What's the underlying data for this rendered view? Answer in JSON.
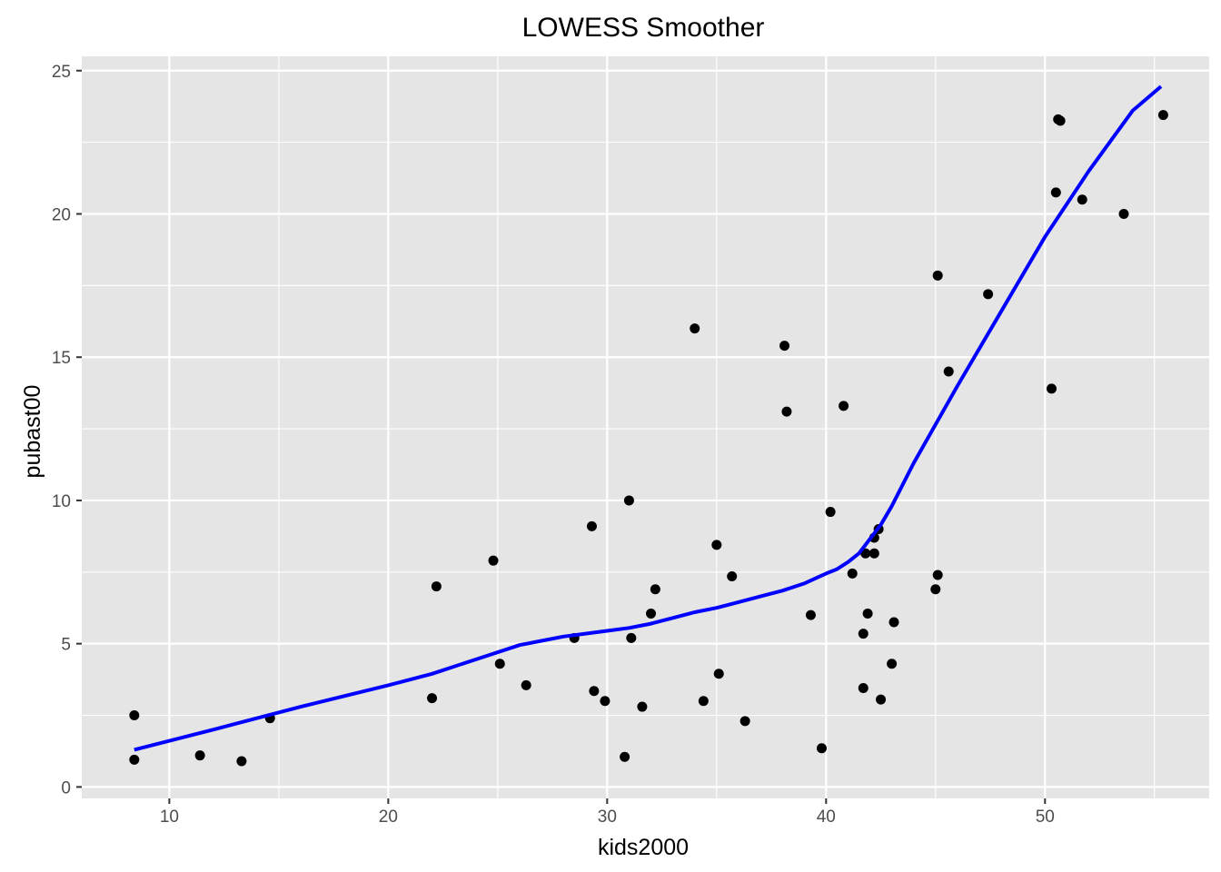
{
  "chart_data": {
    "type": "scatter",
    "title": "LOWESS Smoother",
    "xlabel": "kids2000",
    "ylabel": "pubast00",
    "xlim": [
      6.0,
      57.5
    ],
    "ylim": [
      -0.4,
      25.5
    ],
    "x_ticks": [
      10,
      20,
      30,
      40,
      50
    ],
    "y_ticks": [
      0,
      5,
      10,
      15,
      20,
      25
    ],
    "x_tick_labels": [
      "10",
      "20",
      "30",
      "40",
      "50"
    ],
    "y_tick_labels": [
      "0",
      "5",
      "10",
      "15",
      "20",
      "25"
    ],
    "grid": true,
    "legend": "none",
    "colors": {
      "panel": "#e5e5e5",
      "grid": "#ffffff",
      "points": "#000000",
      "smoother": "#0000ff"
    },
    "points": [
      {
        "x": 8.4,
        "y": 2.5
      },
      {
        "x": 8.4,
        "y": 0.95
      },
      {
        "x": 11.4,
        "y": 1.1
      },
      {
        "x": 13.3,
        "y": 0.9
      },
      {
        "x": 14.6,
        "y": 2.4
      },
      {
        "x": 22.0,
        "y": 3.1
      },
      {
        "x": 22.2,
        "y": 7.0
      },
      {
        "x": 24.8,
        "y": 7.9
      },
      {
        "x": 25.1,
        "y": 4.3
      },
      {
        "x": 26.3,
        "y": 3.55
      },
      {
        "x": 28.5,
        "y": 5.2
      },
      {
        "x": 29.3,
        "y": 9.1
      },
      {
        "x": 29.4,
        "y": 3.35
      },
      {
        "x": 29.9,
        "y": 3.0
      },
      {
        "x": 30.8,
        "y": 1.05
      },
      {
        "x": 31.0,
        "y": 10.0
      },
      {
        "x": 31.1,
        "y": 5.2
      },
      {
        "x": 31.6,
        "y": 2.8
      },
      {
        "x": 32.0,
        "y": 6.05
      },
      {
        "x": 32.2,
        "y": 6.9
      },
      {
        "x": 34.0,
        "y": 16.0
      },
      {
        "x": 34.4,
        "y": 3.0
      },
      {
        "x": 35.0,
        "y": 8.45
      },
      {
        "x": 35.1,
        "y": 3.95
      },
      {
        "x": 35.7,
        "y": 7.35
      },
      {
        "x": 36.3,
        "y": 2.3
      },
      {
        "x": 38.1,
        "y": 15.4
      },
      {
        "x": 38.2,
        "y": 13.1
      },
      {
        "x": 39.3,
        "y": 6.0
      },
      {
        "x": 39.8,
        "y": 1.35
      },
      {
        "x": 40.2,
        "y": 9.6
      },
      {
        "x": 40.8,
        "y": 13.3
      },
      {
        "x": 41.2,
        "y": 7.45
      },
      {
        "x": 41.7,
        "y": 3.45
      },
      {
        "x": 41.7,
        "y": 5.35
      },
      {
        "x": 41.8,
        "y": 8.15
      },
      {
        "x": 41.9,
        "y": 6.05
      },
      {
        "x": 42.2,
        "y": 8.7
      },
      {
        "x": 42.2,
        "y": 8.15
      },
      {
        "x": 42.4,
        "y": 9.0
      },
      {
        "x": 42.5,
        "y": 3.05
      },
      {
        "x": 43.0,
        "y": 4.3
      },
      {
        "x": 43.1,
        "y": 5.75
      },
      {
        "x": 45.0,
        "y": 6.9
      },
      {
        "x": 45.1,
        "y": 7.4
      },
      {
        "x": 45.1,
        "y": 17.85
      },
      {
        "x": 45.6,
        "y": 14.5
      },
      {
        "x": 47.4,
        "y": 17.2
      },
      {
        "x": 50.3,
        "y": 13.9
      },
      {
        "x": 50.5,
        "y": 20.75
      },
      {
        "x": 50.6,
        "y": 23.3
      },
      {
        "x": 50.7,
        "y": 23.25
      },
      {
        "x": 51.7,
        "y": 20.5
      },
      {
        "x": 53.6,
        "y": 20.0
      },
      {
        "x": 55.4,
        "y": 23.45
      }
    ],
    "smoother": {
      "x": [
        8.4,
        12,
        16,
        20,
        22,
        24,
        26,
        27,
        28,
        30,
        31,
        32,
        33,
        34,
        35,
        36,
        37,
        38,
        39,
        40,
        40.5,
        41,
        41.5,
        42,
        42.5,
        43,
        44,
        46,
        48,
        50,
        52,
        54,
        55.3
      ],
      "y": [
        1.3,
        2.0,
        2.8,
        3.55,
        3.95,
        4.45,
        4.95,
        5.1,
        5.25,
        5.45,
        5.55,
        5.7,
        5.9,
        6.1,
        6.25,
        6.45,
        6.65,
        6.85,
        7.1,
        7.45,
        7.6,
        7.85,
        8.15,
        8.65,
        9.15,
        9.8,
        11.3,
        14.0,
        16.6,
        19.2,
        21.5,
        23.6,
        24.45
      ]
    }
  }
}
